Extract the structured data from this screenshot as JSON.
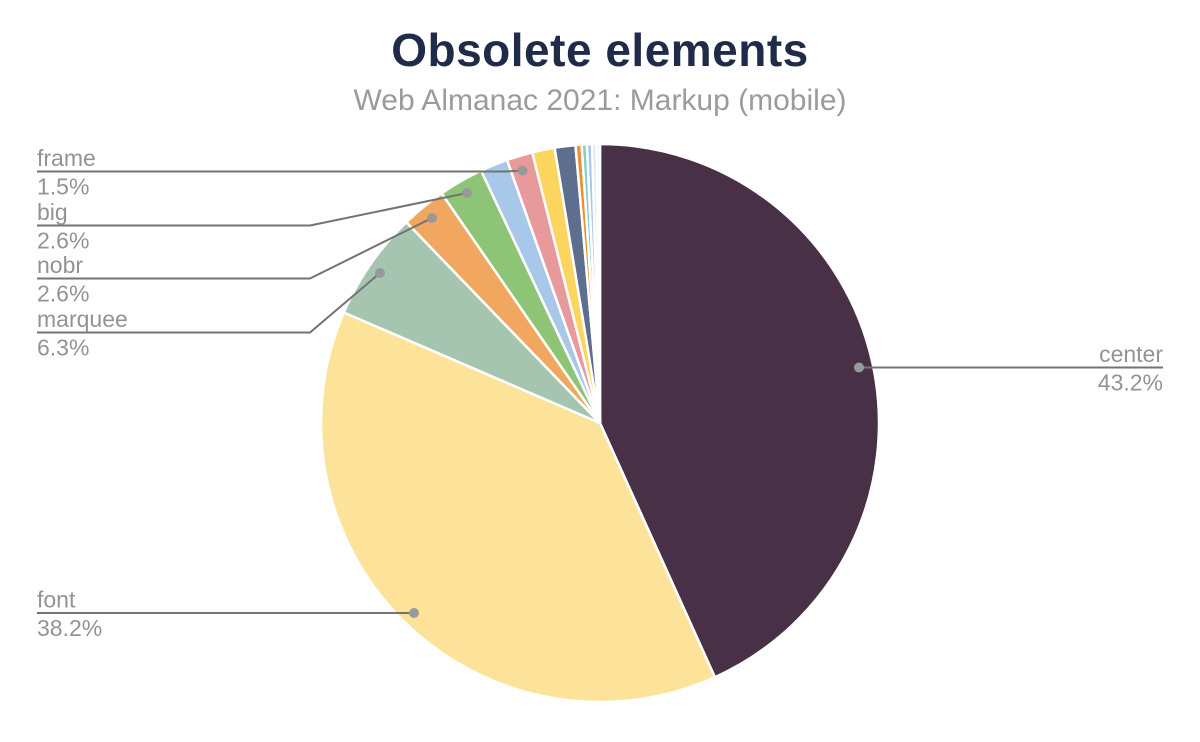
{
  "chart_data": {
    "type": "pie",
    "title": "Obsolete elements",
    "subtitle": "Web Almanac 2021: Markup (mobile)",
    "legend_position": "none",
    "label_style": "leader-line callouts with name above line and percent below",
    "start_angle_deg": 0,
    "direction": "clockwise",
    "slices": [
      {
        "label": "center",
        "display": "43.2%",
        "value": 43.2,
        "color": "#483046",
        "labeled": true
      },
      {
        "label": "font",
        "display": "38.2%",
        "value": 38.2,
        "color": "#fde39a",
        "labeled": true
      },
      {
        "label": "marquee",
        "display": "6.3%",
        "value": 6.3,
        "color": "#a6c5b1",
        "labeled": true
      },
      {
        "label": "nobr",
        "display": "2.6%",
        "value": 2.6,
        "color": "#f1a75f",
        "labeled": true
      },
      {
        "label": "big",
        "display": "2.6%",
        "value": 2.6,
        "color": "#8ec476",
        "labeled": true
      },
      {
        "label": "unlabeled",
        "display": "",
        "value": 1.6,
        "color": "#a8c8e9",
        "labeled": false
      },
      {
        "label": "frame",
        "display": "1.5%",
        "value": 1.5,
        "color": "#e8999c",
        "labeled": true
      },
      {
        "label": "unlabeled",
        "display": "",
        "value": 1.3,
        "color": "#fcd55f",
        "labeled": false
      },
      {
        "label": "unlabeled",
        "display": "",
        "value": 1.2,
        "color": "#5e6e8e",
        "labeled": false
      },
      {
        "label": "unlabeled",
        "display": "",
        "value": 0.35,
        "color": "#ef8d2f",
        "labeled": false
      },
      {
        "label": "unlabeled",
        "display": "",
        "value": 0.3,
        "color": "#7ed0cb",
        "labeled": false
      },
      {
        "label": "unlabeled",
        "display": "",
        "value": 0.3,
        "color": "#a6c8ea",
        "labeled": false
      },
      {
        "label": "unlabeled",
        "display": "",
        "value": 0.25,
        "color": "#dbe7f7",
        "labeled": false
      },
      {
        "label": "unlabeled",
        "display": "",
        "value": 0.2,
        "color": "#eef4fb",
        "labeled": false
      }
    ],
    "colors": {
      "title": "#1f2b49",
      "subtitle": "#9b9b9b",
      "callout_text": "#919497",
      "leader_line": "#737373",
      "leader_dot": "#98999b",
      "background": "#ffffff"
    }
  }
}
